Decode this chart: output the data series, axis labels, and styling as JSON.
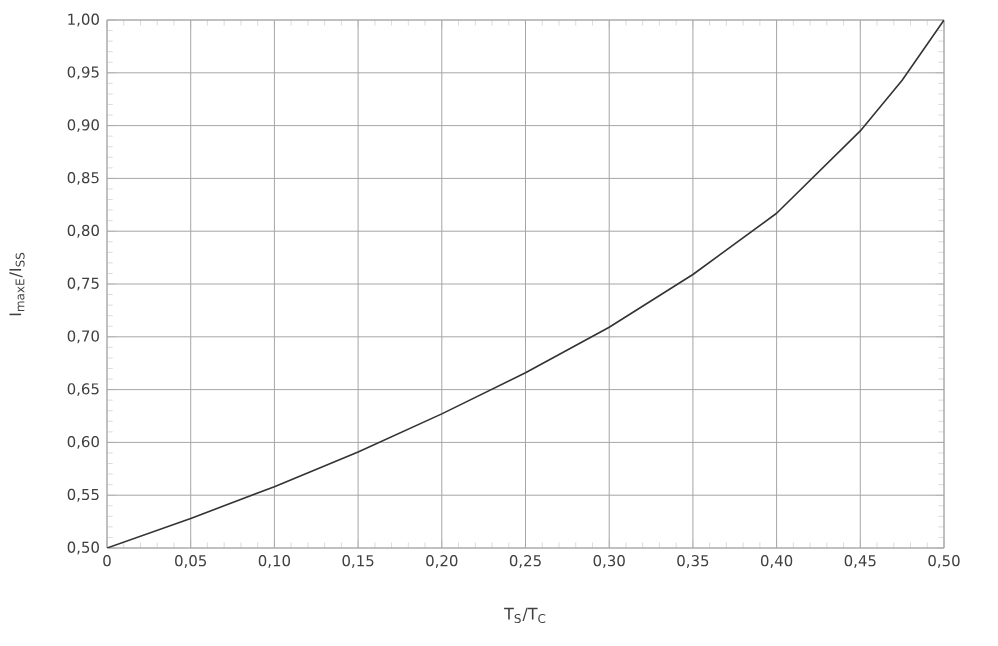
{
  "chart_data": {
    "type": "line",
    "xlabel": "T$_{S}$/T$_{C}$",
    "ylabel": "I$_{maxE}$/I$_{SS}$",
    "color": "#333333",
    "grid": true,
    "x": [
      0,
      0.05,
      0.1,
      0.15,
      0.2,
      0.25,
      0.3,
      0.35,
      0.4,
      0.45,
      0.475,
      0.5
    ],
    "values": [
      0.5,
      0.528,
      0.558,
      0.591,
      0.627,
      0.666,
      0.709,
      0.759,
      0.817,
      0.895,
      0.943,
      1.0
    ],
    "xlim": [
      0,
      0.5
    ],
    "ylim": [
      0.5,
      1.0
    ],
    "xticks": [
      0,
      {
        "value": 0.05,
        "label": "0,05"
      },
      {
        "value": 0.1,
        "label": "0,10"
      },
      {
        "value": 0.15,
        "label": "0,15"
      },
      {
        "value": 0.2,
        "label": "0,20"
      },
      {
        "value": 0.25,
        "label": "0,25"
      },
      {
        "value": 0.3,
        "label": "0,30"
      },
      {
        "value": 0.35,
        "label": "0,35"
      },
      {
        "value": 0.4,
        "label": "0,40"
      },
      {
        "value": 0.45,
        "label": "0,45"
      },
      {
        "value": 0.5,
        "label": "0,50"
      }
    ],
    "yticks": [
      {
        "value": 0.5,
        "label": "0,50"
      },
      {
        "value": 0.55,
        "label": "0,55"
      },
      {
        "value": 0.6,
        "label": "0,60"
      },
      {
        "value": 0.65,
        "label": "0,65"
      },
      {
        "value": 0.7,
        "label": "0,70"
      },
      {
        "value": 0.75,
        "label": "0,75"
      },
      {
        "value": 0.8,
        "label": "0,80"
      },
      {
        "value": 0.85,
        "label": "0,85"
      },
      {
        "value": 0.9,
        "label": "0,90"
      },
      {
        "value": 0.95,
        "label": "0,95"
      },
      {
        "value": 1.0,
        "label": "1,00"
      }
    ]
  }
}
